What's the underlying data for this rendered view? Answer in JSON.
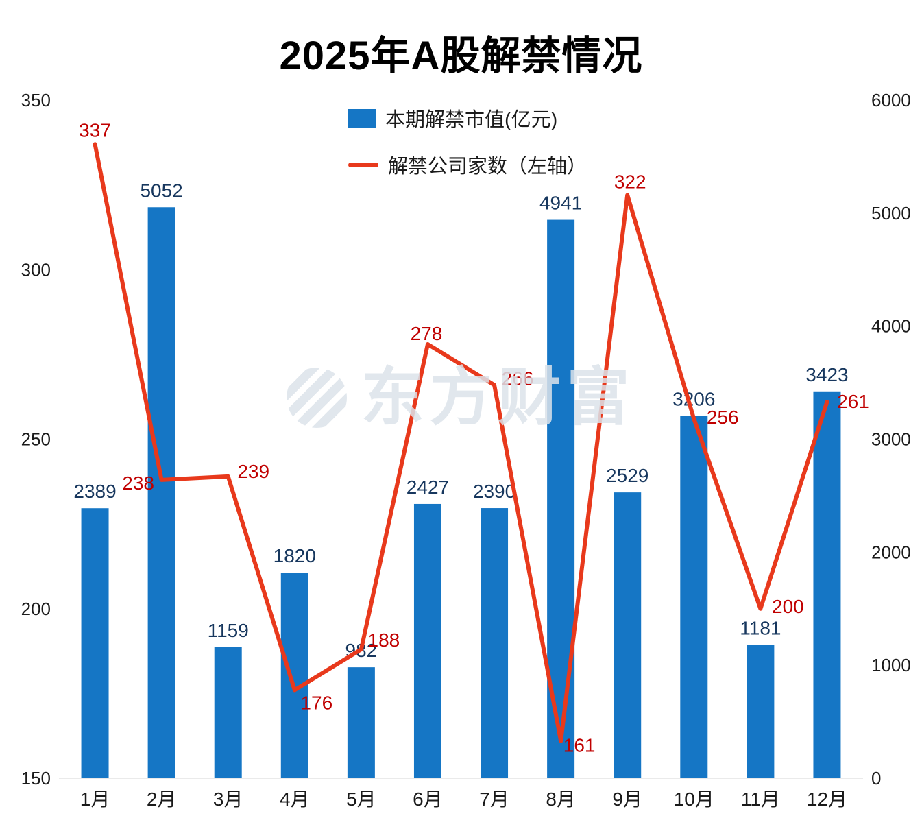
{
  "title": "2025年A股解禁情况",
  "watermark": "东方财富",
  "legend": [
    {
      "label": "本期解禁市值(亿元)",
      "type": "bar",
      "color": "#1576c5"
    },
    {
      "label": "解禁公司家数（左轴）",
      "type": "line",
      "color": "#e8391c"
    }
  ],
  "chart_data": {
    "type": "combo",
    "title": "2025年A股解禁情况",
    "categories": [
      "1月",
      "2月",
      "3月",
      "4月",
      "5月",
      "6月",
      "7月",
      "8月",
      "9月",
      "10月",
      "11月",
      "12月"
    ],
    "series": [
      {
        "name": "本期解禁市值(亿元)",
        "type": "bar",
        "axis": "right",
        "color": "#1576c5",
        "label_color": "#17375e",
        "values": [
          2389,
          5052,
          1159,
          1820,
          982,
          2427,
          2390,
          4941,
          2529,
          3206,
          1181,
          3423
        ]
      },
      {
        "name": "解禁公司家数（左轴）",
        "type": "line",
        "axis": "left",
        "color": "#e8391c",
        "label_color": "#c00000",
        "values": [
          337,
          238,
          239,
          176,
          188,
          278,
          266,
          161,
          322,
          256,
          200,
          261
        ]
      }
    ],
    "left_axis": {
      "min": 150,
      "max": 350,
      "ticks": [
        150,
        200,
        250,
        300,
        350
      ]
    },
    "right_axis": {
      "min": 0,
      "max": 6000,
      "ticks": [
        0,
        1000,
        2000,
        3000,
        4000,
        5000,
        6000
      ]
    },
    "grid": false,
    "legend_position": "top-center",
    "xlabel": "",
    "ylabel_left": "解禁公司家数",
    "ylabel_right": "本期解禁市值(亿元)"
  }
}
